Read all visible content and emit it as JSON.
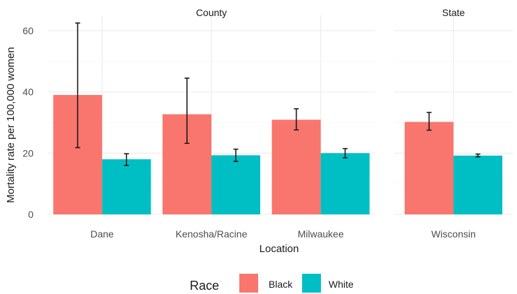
{
  "chart_data": {
    "type": "bar",
    "xlabel": "Location",
    "ylabel": "Mortality rate per 100,000 women",
    "ylim": [
      0,
      65
    ],
    "yticks": [
      0,
      20,
      40,
      60
    ],
    "grid": true,
    "legend": {
      "title": "Race",
      "placement": "bottom"
    },
    "series": [
      {
        "name": "Black",
        "color": "#F8766D"
      },
      {
        "name": "White",
        "color": "#00BFC4"
      }
    ],
    "facets": [
      {
        "label": "County",
        "categories": [
          "Dane",
          "Kenosha/Racine",
          "Milwaukee"
        ],
        "values": {
          "Black": [
            39.0,
            32.7,
            30.9
          ],
          "White": [
            18.0,
            19.3,
            20.0
          ]
        },
        "error_low": {
          "Black": [
            21.8,
            23.2,
            27.6
          ],
          "White": [
            16.0,
            17.3,
            18.5
          ]
        },
        "error_high": {
          "Black": [
            62.5,
            44.5,
            34.5
          ],
          "White": [
            19.8,
            21.3,
            21.5
          ]
        }
      },
      {
        "label": "State",
        "categories": [
          "Wisconsin"
        ],
        "values": {
          "Black": [
            30.2
          ],
          "White": [
            19.2
          ]
        },
        "error_low": {
          "Black": [
            27.5
          ],
          "White": [
            18.8
          ]
        },
        "error_high": {
          "Black": [
            33.3
          ],
          "White": [
            19.7
          ]
        }
      }
    ]
  }
}
